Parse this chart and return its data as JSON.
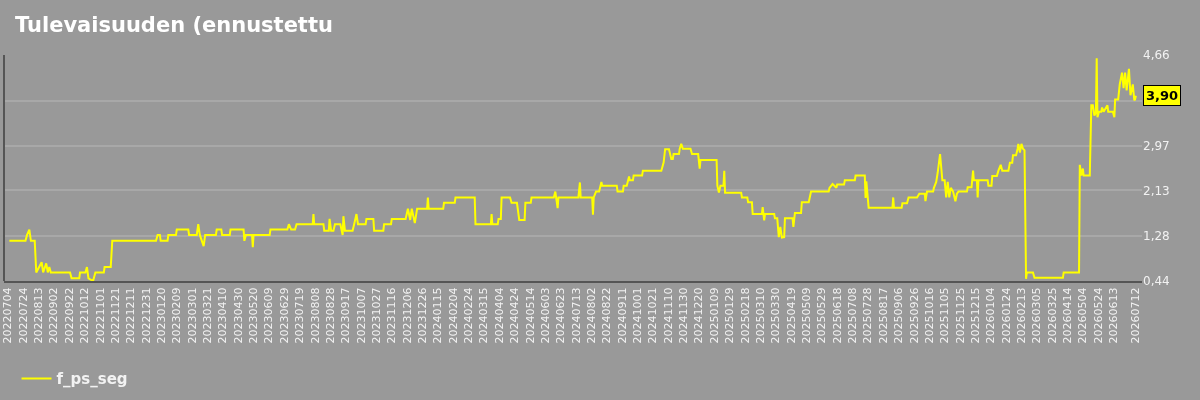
{
  "chart_data": {
    "type": "line",
    "title": "Tulevaisuuden (ennustettu",
    "x": [
      "2022-07-06",
      "2022-07-27",
      "2022-07-29",
      "2022-08-01",
      "2022-08-03",
      "2022-08-08",
      "2022-08-10",
      "2022-08-17",
      "2022-08-19",
      "2022-08-23",
      "2022-08-25",
      "2022-08-27",
      "2022-08-29",
      "2022-09-23",
      "2022-09-25",
      "2022-10-05",
      "2022-10-06",
      "2022-10-13",
      "2022-10-15",
      "2022-10-17",
      "2022-10-23",
      "2022-10-26",
      "2022-11-06",
      "2022-11-07",
      "2022-11-15",
      "2022-11-17",
      "2023-01-13",
      "2023-01-15",
      "2023-01-18",
      "2023-01-19",
      "2023-01-28",
      "2023-01-29",
      "2023-02-08",
      "2023-02-09",
      "2023-02-24",
      "2023-02-25",
      "2023-03-07",
      "2023-03-09",
      "2023-03-11",
      "2023-03-16",
      "2023-03-18",
      "2023-04-01",
      "2023-04-02",
      "2023-04-08",
      "2023-04-09",
      "2023-04-19",
      "2023-04-20",
      "2023-05-07",
      "2023-05-08",
      "2023-05-10",
      "2023-05-18",
      "2023-05-19",
      "2023-05-20",
      "2023-06-10",
      "2023-06-11",
      "2023-07-03",
      "2023-07-05",
      "2023-07-08",
      "2023-07-13",
      "2023-07-15",
      "2023-08-05",
      "2023-08-06",
      "2023-08-07",
      "2023-08-19",
      "2023-08-20",
      "2023-08-26",
      "2023-08-27",
      "2023-08-29",
      "2023-09-01",
      "2023-09-03",
      "2023-09-10",
      "2023-09-13",
      "2023-09-14",
      "2023-09-16",
      "2023-09-26",
      "2023-09-28",
      "2023-10-01",
      "2023-10-03",
      "2023-10-13",
      "2023-10-14",
      "2023-10-23",
      "2023-10-24",
      "2023-11-05",
      "2023-11-06",
      "2023-11-15",
      "2023-11-16",
      "2023-12-04",
      "2023-12-07",
      "2023-12-10",
      "2023-12-12",
      "2023-12-16",
      "2023-12-19",
      "2024-01-01",
      "2024-01-02",
      "2024-01-03",
      "2024-01-22",
      "2024-01-23",
      "2024-02-06",
      "2024-02-07",
      "2024-03-03",
      "2024-03-04",
      "2024-03-24",
      "2024-03-25",
      "2024-03-26",
      "2024-04-02",
      "2024-04-03",
      "2024-04-06",
      "2024-04-07",
      "2024-04-18",
      "2024-04-20",
      "2024-04-27",
      "2024-04-30",
      "2024-05-07",
      "2024-05-08",
      "2024-05-15",
      "2024-05-16",
      "2024-06-14",
      "2024-06-16",
      "2024-06-17",
      "2024-06-19",
      "2024-06-20",
      "2024-07-16",
      "2024-07-18",
      "2024-07-19",
      "2024-08-03",
      "2024-08-04",
      "2024-08-05",
      "2024-08-08",
      "2024-08-12",
      "2024-08-15",
      "2024-08-16",
      "2024-09-04",
      "2024-09-05",
      "2024-09-12",
      "2024-09-13",
      "2024-09-17",
      "2024-09-20",
      "2024-09-21",
      "2024-09-25",
      "2024-09-26",
      "2024-10-07",
      "2024-10-08",
      "2024-11-01",
      "2024-11-04",
      "2024-11-06",
      "2024-11-11",
      "2024-11-14",
      "2024-11-16",
      "2024-11-17",
      "2024-11-24",
      "2024-11-25",
      "2024-11-27",
      "2024-11-29",
      "2024-12-09",
      "2024-12-11",
      "2024-12-19",
      "2024-12-21",
      "2024-12-22",
      "2025-01-12",
      "2025-01-13",
      "2025-01-15",
      "2025-01-17",
      "2025-01-21",
      "2025-01-22",
      "2025-01-23",
      "2025-02-13",
      "2025-02-14",
      "2025-02-21",
      "2025-02-22",
      "2025-02-27",
      "2025-02-28",
      "2025-03-12",
      "2025-03-13",
      "2025-03-15",
      "2025-03-16",
      "2025-03-28",
      "2025-03-29",
      "2025-04-01",
      "2025-04-03",
      "2025-04-05",
      "2025-04-07",
      "2025-04-10",
      "2025-04-11",
      "2025-04-21",
      "2025-04-22",
      "2025-04-24",
      "2025-05-02",
      "2025-05-03",
      "2025-05-12",
      "2025-05-15",
      "2025-06-07",
      "2025-06-08",
      "2025-06-12",
      "2025-06-17",
      "2025-06-18",
      "2025-06-27",
      "2025-06-28",
      "2025-07-11",
      "2025-07-12",
      "2025-07-24",
      "2025-07-25",
      "2025-07-26",
      "2025-07-29",
      "2025-08-29",
      "2025-08-30",
      "2025-08-31",
      "2025-09-10",
      "2025-09-11",
      "2025-09-17",
      "2025-09-19",
      "2025-09-30",
      "2025-10-03",
      "2025-10-10",
      "2025-10-11",
      "2025-10-13",
      "2025-10-21",
      "2025-10-22",
      "2025-10-25",
      "2025-10-27",
      "2025-10-30",
      "2025-11-02",
      "2025-11-05",
      "2025-11-07",
      "2025-11-09",
      "2025-11-11",
      "2025-11-13",
      "2025-11-16",
      "2025-11-19",
      "2025-11-21",
      "2025-11-23",
      "2025-12-04",
      "2025-12-05",
      "2025-12-10",
      "2025-12-12",
      "2025-12-13",
      "2025-12-17",
      "2025-12-18",
      "2025-12-19",
      "2025-12-31",
      "2026-01-01",
      "2026-01-05",
      "2026-01-06",
      "2026-01-12",
      "2026-01-14",
      "2026-01-17",
      "2026-01-19",
      "2026-01-27",
      "2026-01-29",
      "2026-02-01",
      "2026-02-02",
      "2026-02-06",
      "2026-02-08",
      "2026-02-09",
      "2026-02-11",
      "2026-02-13",
      "2026-02-15",
      "2026-02-17",
      "2026-02-19",
      "2026-02-20",
      "2026-02-28",
      "2026-03-02",
      "2026-04-08",
      "2026-04-09",
      "2026-04-29",
      "2026-04-30",
      "2026-05-02",
      "2026-05-04",
      "2026-05-05",
      "2026-05-13",
      "2026-05-15",
      "2026-05-17",
      "2026-05-19",
      "2026-05-21",
      "2026-05-22",
      "2026-05-23",
      "2026-05-25",
      "2026-05-28",
      "2026-05-29",
      "2026-05-31",
      "2026-06-05",
      "2026-06-06",
      "2026-06-12",
      "2026-06-14",
      "2026-06-15",
      "2026-06-19",
      "2026-06-21",
      "2026-06-24",
      "2026-06-26",
      "2026-06-28",
      "2026-06-30",
      "2026-07-03",
      "2026-07-05",
      "2026-07-08",
      "2026-07-10",
      "2026-07-11",
      "2026-07-12"
    ],
    "series": [
      {
        "name": "f_ps_seg",
        "color": "#ffff00",
        "values": [
          1.19,
          1.19,
          1.3,
          1.4,
          1.19,
          1.19,
          0.6,
          0.79,
          0.6,
          0.77,
          0.6,
          0.7,
          0.6,
          0.6,
          0.49,
          0.49,
          0.6,
          0.6,
          0.7,
          0.49,
          0.44,
          0.6,
          0.6,
          0.7,
          0.7,
          1.19,
          1.19,
          1.3,
          1.3,
          1.19,
          1.19,
          1.3,
          1.3,
          1.4,
          1.4,
          1.3,
          1.3,
          1.5,
          1.3,
          1.09,
          1.3,
          1.3,
          1.4,
          1.4,
          1.3,
          1.3,
          1.4,
          1.4,
          1.19,
          1.3,
          1.3,
          1.07,
          1.3,
          1.3,
          1.4,
          1.4,
          1.5,
          1.4,
          1.4,
          1.5,
          1.5,
          1.69,
          1.5,
          1.5,
          1.38,
          1.38,
          1.6,
          1.38,
          1.38,
          1.5,
          1.5,
          1.3,
          1.65,
          1.38,
          1.38,
          1.5,
          1.69,
          1.5,
          1.5,
          1.6,
          1.6,
          1.38,
          1.38,
          1.5,
          1.5,
          1.6,
          1.6,
          1.79,
          1.58,
          1.79,
          1.52,
          1.79,
          1.79,
          2.0,
          1.79,
          1.79,
          1.9,
          1.9,
          2.0,
          2.0,
          1.5,
          1.5,
          1.69,
          1.5,
          1.5,
          1.6,
          1.6,
          2.0,
          2.0,
          1.9,
          1.9,
          1.58,
          1.58,
          1.9,
          1.9,
          2.0,
          2.0,
          2.11,
          2.0,
          1.8,
          2.0,
          2.0,
          2.28,
          2.0,
          2.0,
          1.68,
          2.0,
          2.11,
          2.11,
          2.29,
          2.22,
          2.22,
          2.11,
          2.11,
          2.22,
          2.22,
          2.39,
          2.32,
          2.32,
          2.41,
          2.41,
          2.5,
          2.5,
          2.65,
          2.9,
          2.9,
          2.72,
          2.72,
          2.81,
          2.81,
          2.91,
          3.0,
          2.91,
          2.91,
          2.81,
          2.81,
          2.54,
          2.7,
          2.7,
          2.22,
          2.09,
          2.22,
          2.22,
          2.5,
          2.09,
          2.09,
          2.0,
          2.0,
          1.91,
          1.91,
          1.69,
          1.69,
          1.82,
          1.57,
          1.69,
          1.69,
          1.61,
          1.61,
          1.26,
          1.45,
          1.25,
          1.26,
          1.61,
          1.61,
          1.45,
          1.71,
          1.71,
          1.91,
          1.91,
          2.11,
          2.11,
          2.18,
          2.25,
          2.18,
          2.24,
          2.24,
          2.32,
          2.32,
          2.41,
          2.41,
          1.99,
          2.3,
          1.81,
          1.81,
          2.0,
          1.81,
          1.81,
          1.89,
          1.89,
          2.0,
          2.0,
          2.07,
          2.07,
          1.93,
          2.11,
          2.11,
          2.18,
          2.29,
          2.47,
          2.81,
          2.32,
          2.32,
          2.0,
          2.29,
          2.0,
          2.18,
          2.11,
          1.93,
          2.07,
          2.11,
          2.11,
          2.19,
          2.19,
          2.5,
          2.32,
          2.32,
          2.0,
          2.32,
          2.32,
          2.22,
          2.22,
          2.4,
          2.4,
          2.5,
          2.61,
          2.5,
          2.5,
          2.65,
          2.65,
          2.79,
          2.79,
          2.91,
          3.0,
          2.84,
          3.0,
          2.91,
          2.88,
          0.48,
          0.6,
          0.6,
          0.5,
          0.5,
          0.6,
          0.6,
          2.61,
          2.41,
          2.54,
          2.41,
          2.41,
          3.72,
          3.72,
          3.53,
          3.58,
          4.6,
          3.5,
          3.6,
          3.6,
          3.68,
          3.6,
          3.72,
          3.6,
          3.6,
          3.5,
          3.83,
          3.83,
          4.11,
          4.33,
          4.04,
          4.33,
          4.0,
          4.4,
          3.91,
          4.11,
          3.81,
          3.83,
          3.9
        ]
      }
    ],
    "xlim": [
      "2022-06-29",
      "2026-07-20"
    ],
    "xticks": [
      {
        "value": "2022-07-04",
        "label": "20220704"
      },
      {
        "value": "2022-07-24",
        "label": "20220724"
      },
      {
        "value": "2022-08-13",
        "label": "20220813"
      },
      {
        "value": "2022-09-02",
        "label": "20220902"
      },
      {
        "value": "2022-09-22",
        "label": "20220922"
      },
      {
        "value": "2022-10-12",
        "label": "20221012"
      },
      {
        "value": "2022-11-01",
        "label": "20221101"
      },
      {
        "value": "2022-11-21",
        "label": "20221121"
      },
      {
        "value": "2022-12-11",
        "label": "20221211"
      },
      {
        "value": "2022-12-31",
        "label": "20221231"
      },
      {
        "value": "2023-01-20",
        "label": "20230120"
      },
      {
        "value": "2023-02-09",
        "label": "20230209"
      },
      {
        "value": "2023-03-01",
        "label": "20230301"
      },
      {
        "value": "2023-03-21",
        "label": "20230321"
      },
      {
        "value": "2023-04-10",
        "label": "20230410"
      },
      {
        "value": "2023-04-30",
        "label": "20230430"
      },
      {
        "value": "2023-05-20",
        "label": "20230520"
      },
      {
        "value": "2023-06-09",
        "label": "20230609"
      },
      {
        "value": "2023-06-29",
        "label": "20230629"
      },
      {
        "value": "2023-07-19",
        "label": "20230719"
      },
      {
        "value": "2023-08-08",
        "label": "20230808"
      },
      {
        "value": "2023-08-28",
        "label": "20230828"
      },
      {
        "value": "2023-09-17",
        "label": "20230917"
      },
      {
        "value": "2023-10-07",
        "label": "20231007"
      },
      {
        "value": "2023-10-27",
        "label": "20231027"
      },
      {
        "value": "2023-11-16",
        "label": "20231116"
      },
      {
        "value": "2023-12-06",
        "label": "20231206"
      },
      {
        "value": "2023-12-26",
        "label": "20231226"
      },
      {
        "value": "2024-01-15",
        "label": "20240115"
      },
      {
        "value": "2024-02-04",
        "label": "20240204"
      },
      {
        "value": "2024-02-24",
        "label": "20240224"
      },
      {
        "value": "2024-03-15",
        "label": "20240315"
      },
      {
        "value": "2024-04-04",
        "label": "20240404"
      },
      {
        "value": "2024-04-24",
        "label": "20240424"
      },
      {
        "value": "2024-05-14",
        "label": "20240514"
      },
      {
        "value": "2024-06-03",
        "label": "20240603"
      },
      {
        "value": "2024-06-23",
        "label": "20240623"
      },
      {
        "value": "2024-07-13",
        "label": "20240713"
      },
      {
        "value": "2024-08-02",
        "label": "20240802"
      },
      {
        "value": "2024-08-22",
        "label": "20240822"
      },
      {
        "value": "2024-09-11",
        "label": "20240911"
      },
      {
        "value": "2024-10-01",
        "label": "20241001"
      },
      {
        "value": "2024-10-21",
        "label": "20241021"
      },
      {
        "value": "2024-11-10",
        "label": "20241110"
      },
      {
        "value": "2024-11-30",
        "label": "20241130"
      },
      {
        "value": "2024-12-20",
        "label": "20241220"
      },
      {
        "value": "2025-01-09",
        "label": "20250109"
      },
      {
        "value": "2025-01-29",
        "label": "20250129"
      },
      {
        "value": "2025-02-18",
        "label": "20250218"
      },
      {
        "value": "2025-03-10",
        "label": "20250310"
      },
      {
        "value": "2025-03-30",
        "label": "20250330"
      },
      {
        "value": "2025-04-19",
        "label": "20250419"
      },
      {
        "value": "2025-05-09",
        "label": "20250509"
      },
      {
        "value": "2025-05-29",
        "label": "20250529"
      },
      {
        "value": "2025-06-18",
        "label": "20250618"
      },
      {
        "value": "2025-07-08",
        "label": "20250708"
      },
      {
        "value": "2025-07-28",
        "label": "20250728"
      },
      {
        "value": "2025-08-17",
        "label": "20250817"
      },
      {
        "value": "2025-09-06",
        "label": "20250906"
      },
      {
        "value": "2025-09-26",
        "label": "20250926"
      },
      {
        "value": "2025-10-16",
        "label": "20251016"
      },
      {
        "value": "2025-11-05",
        "label": "20251105"
      },
      {
        "value": "2025-11-25",
        "label": "20251125"
      },
      {
        "value": "2025-12-15",
        "label": "20251215"
      },
      {
        "value": "2026-01-04",
        "label": "20260104"
      },
      {
        "value": "2026-01-24",
        "label": "20260124"
      },
      {
        "value": "2026-02-13",
        "label": "20260213"
      },
      {
        "value": "2026-03-05",
        "label": "20260305"
      },
      {
        "value": "2026-03-25",
        "label": "20260325"
      },
      {
        "value": "2026-04-14",
        "label": "20260414"
      },
      {
        "value": "2026-05-04",
        "label": "20260504"
      },
      {
        "value": "2026-05-24",
        "label": "20260524"
      },
      {
        "value": "2026-06-13",
        "label": "20260613"
      },
      {
        "value": "2026-07-12",
        "label": "20260712"
      }
    ],
    "ylim": [
      0.44,
      4.66
    ],
    "yticks": [
      {
        "value": 0.44,
        "label": "0,44"
      },
      {
        "value": 1.28,
        "label": "1,28"
      },
      {
        "value": 2.13,
        "label": "2,13"
      },
      {
        "value": 2.97,
        "label": "2,97"
      },
      {
        "value": 3.81,
        "label": null
      },
      {
        "value": 4.66,
        "label": "4,66"
      }
    ],
    "grid": "y",
    "legend": "bottom left",
    "annotations": [
      {
        "text": "3,90",
        "x": "2026-07-12",
        "y": 3.9
      }
    ]
  }
}
